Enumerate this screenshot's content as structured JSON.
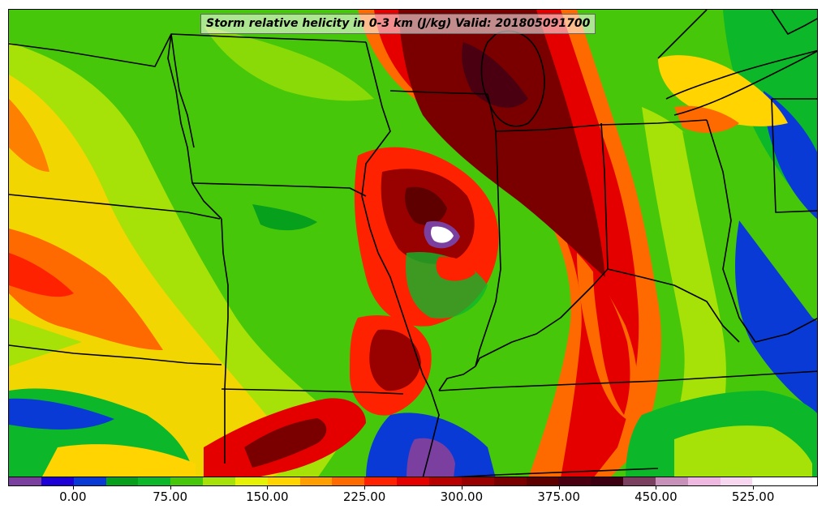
{
  "title": "Storm relative helicity in 0-3 km (J/kg) Valid: 201805091700",
  "colorbar": {
    "min": -50,
    "max": 575,
    "step": 25,
    "colors": [
      "#7b3fa0",
      "#1c00d6",
      "#0a3ad6",
      "#07a01d",
      "#0cb82a",
      "#47c70a",
      "#a6e207",
      "#e5f205",
      "#ffd400",
      "#ff9e00",
      "#ff6a00",
      "#ff2200",
      "#e50000",
      "#b80000",
      "#990000",
      "#7a0000",
      "#5e0000",
      "#4a0010",
      "#3d0012",
      "#7b4060",
      "#c690b8",
      "#efb8e0",
      "#f7d6f0",
      "#ffffff",
      "#ffffff"
    ],
    "tick_labels": [
      "0.00",
      "75.00",
      "150.00",
      "225.00",
      "300.00",
      "375.00",
      "450.00",
      "525.00"
    ],
    "tick_values": [
      0,
      75,
      150,
      225,
      300,
      375,
      450,
      525
    ]
  }
}
